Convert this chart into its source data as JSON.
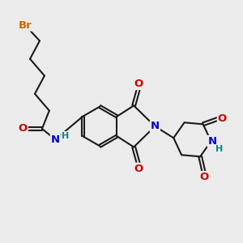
{
  "bg_color": "#ebebeb",
  "bond_color": "#1a1a1a",
  "bond_width": 1.5,
  "atom_colors": {
    "Br": "#cc6600",
    "O": "#cc0000",
    "N": "#0000cc",
    "H": "#008888",
    "C": "#1a1a1a"
  },
  "font_size_atom": 9.5,
  "font_size_h": 8.0
}
